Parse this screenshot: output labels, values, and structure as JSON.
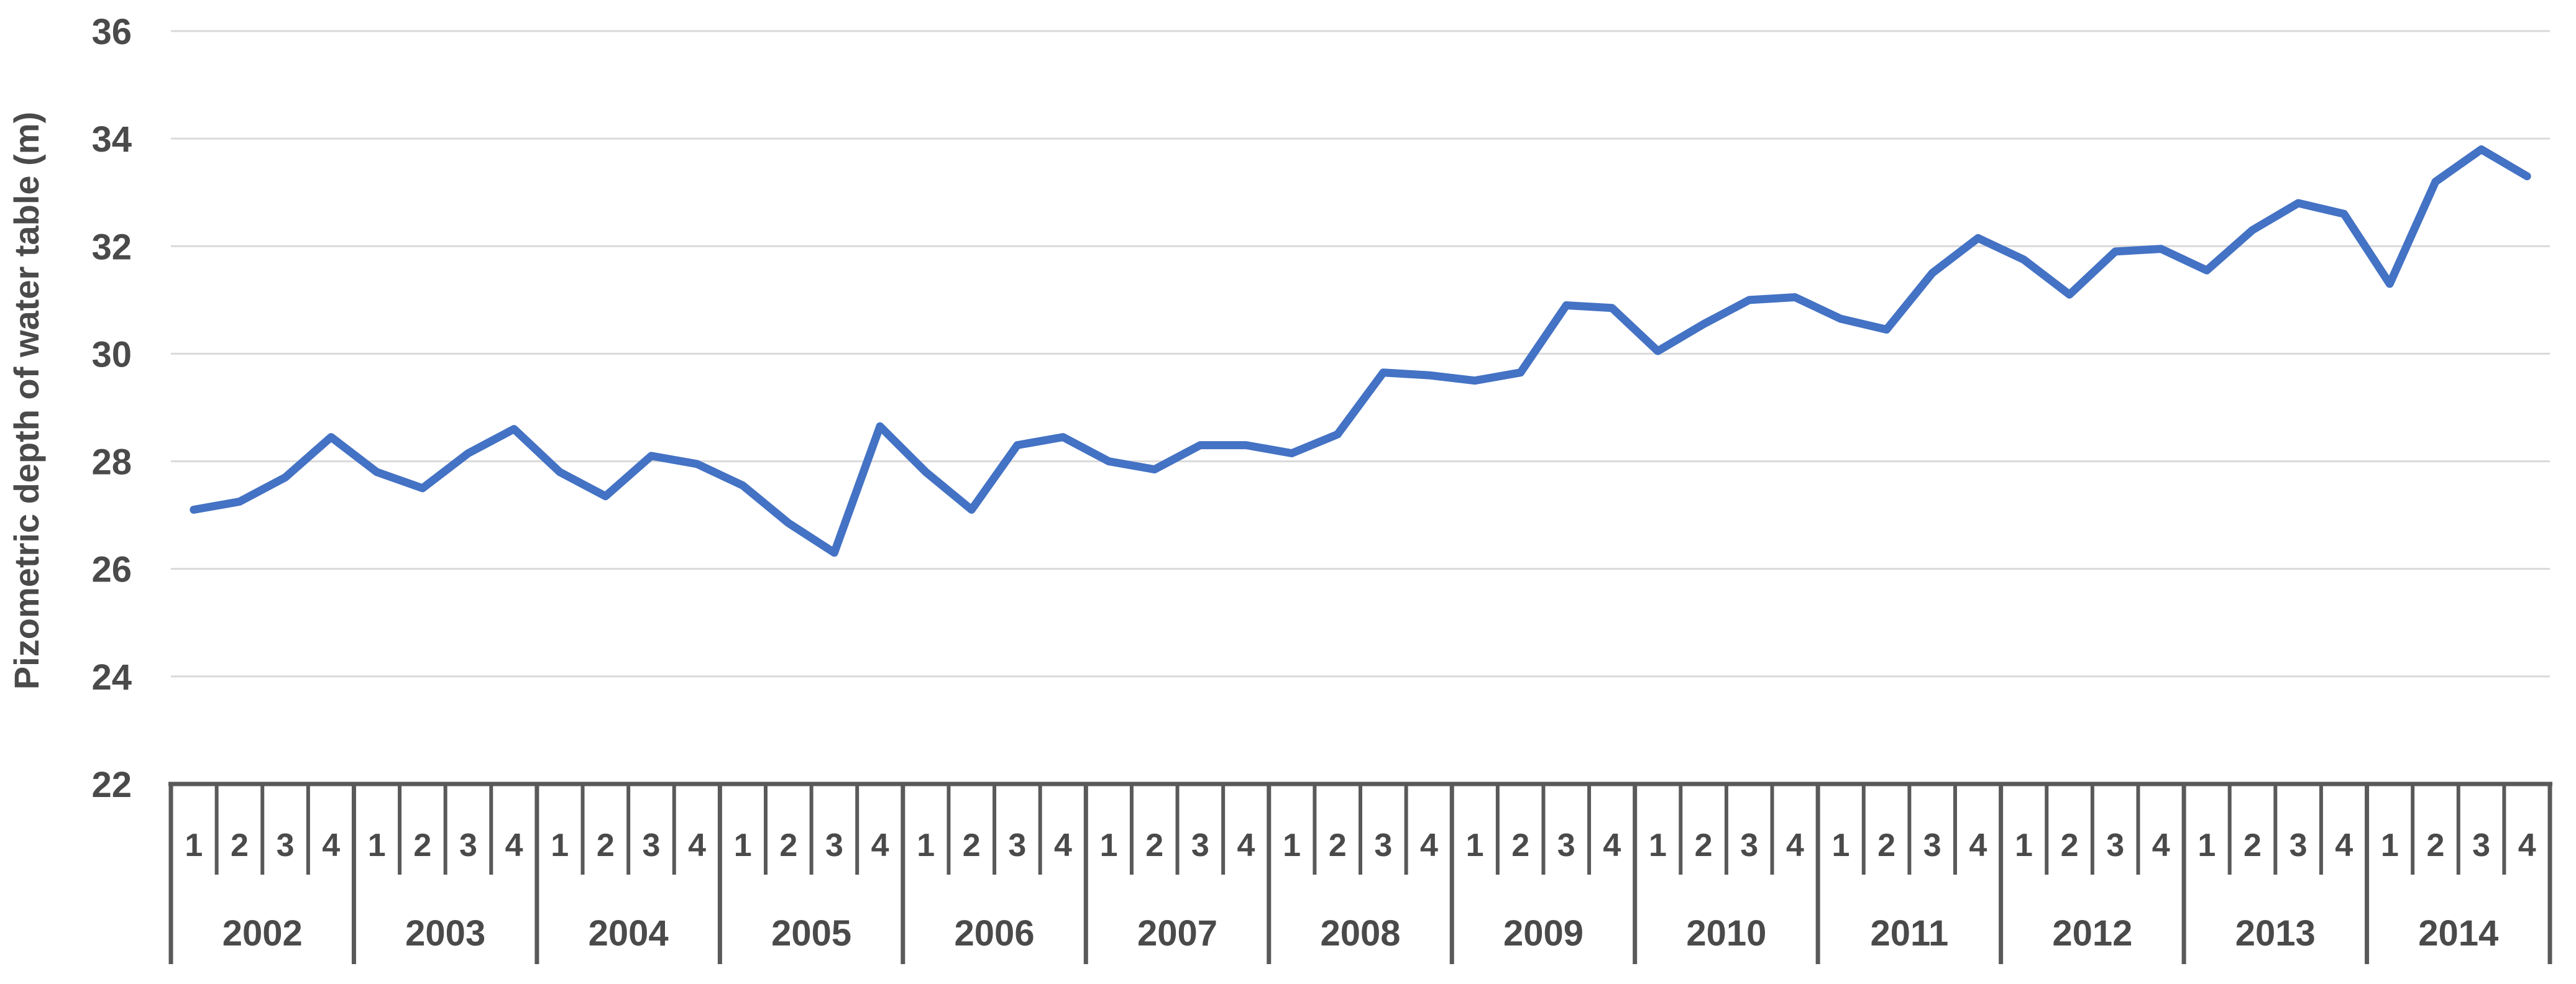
{
  "chart_data": {
    "type": "line",
    "title": "",
    "ylabel": "Pizometric depth of water table (m)",
    "xlabel": "",
    "ylim": [
      22,
      36
    ],
    "yticks": [
      22,
      24,
      26,
      28,
      30,
      32,
      34,
      36
    ],
    "grid": "horizontal-solid-light",
    "legend": "none",
    "years": [
      "2002",
      "2003",
      "2004",
      "2005",
      "2006",
      "2007",
      "2008",
      "2009",
      "2010",
      "2011",
      "2012",
      "2013",
      "2014"
    ],
    "quarter_labels": [
      "1",
      "2",
      "3",
      "4"
    ],
    "x_axis_style": "two-tier-category-table",
    "series": [
      {
        "name": "Pizometric depth of water table (m)",
        "values": [
          27.1,
          27.25,
          27.7,
          28.45,
          27.8,
          27.5,
          28.15,
          28.6,
          27.8,
          27.35,
          28.1,
          27.95,
          27.55,
          26.85,
          26.3,
          28.65,
          27.8,
          27.1,
          28.3,
          28.45,
          28.0,
          27.85,
          28.3,
          28.3,
          28.15,
          28.5,
          29.65,
          29.6,
          29.5,
          29.65,
          30.9,
          30.85,
          30.05,
          30.55,
          31.0,
          31.05,
          30.65,
          30.45,
          31.5,
          32.15,
          31.75,
          31.1,
          31.9,
          31.95,
          31.55,
          32.3,
          32.8,
          32.6,
          31.3,
          33.2,
          33.8,
          33.3
        ]
      }
    ],
    "colors": {
      "line": "#4472C4",
      "gridline": "#D9D9D9",
      "axis": "#595959",
      "text": "#4A4A4A",
      "background": "#FFFFFF"
    }
  }
}
